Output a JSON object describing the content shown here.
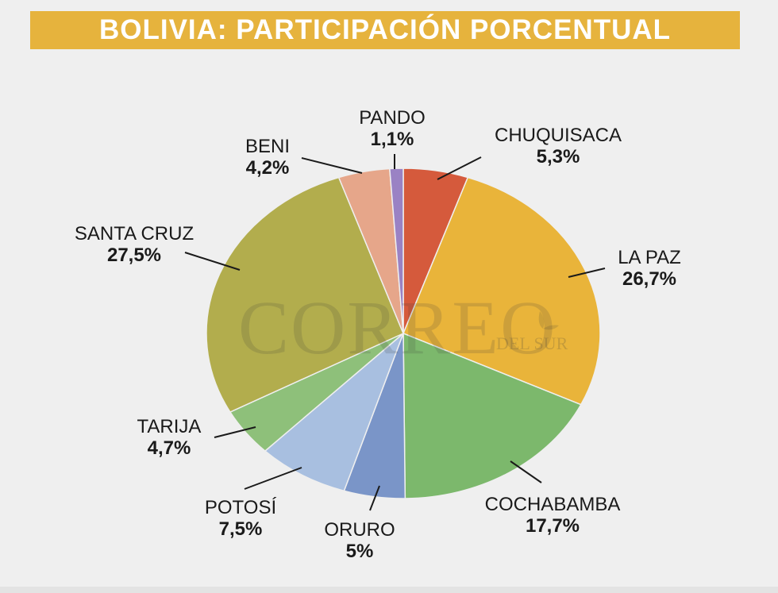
{
  "header": {
    "title": "BOLIVIA: PARTICIPACIÓN PORCENTUAL"
  },
  "watermark": {
    "main": "CORREO",
    "sub": "DEL SUR"
  },
  "chart_data": {
    "type": "pie",
    "title": "BOLIVIA: PARTICIPACIÓN PORCENTUAL",
    "start": "12 o'clock",
    "direction": "clockwise",
    "slices": [
      {
        "name": "CHUQUISACA",
        "value": 5.3,
        "label": "5,3%",
        "color": "#d55a3c"
      },
      {
        "name": "LA PAZ",
        "value": 26.7,
        "label": "26,7%",
        "color": "#e9b43a"
      },
      {
        "name": "COCHABAMBA",
        "value": 17.7,
        "label": "17,7%",
        "color": "#7cb86c"
      },
      {
        "name": "ORURO",
        "value": 5,
        "label": "5%",
        "color": "#7a95c8"
      },
      {
        "name": "POTOSÍ",
        "value": 7.5,
        "label": "7,5%",
        "color": "#a8bfe0"
      },
      {
        "name": "TARIJA",
        "value": 4.7,
        "label": "4,7%",
        "color": "#8ec07a"
      },
      {
        "name": "SANTA CRUZ",
        "value": 27.5,
        "label": "27,5%",
        "color": "#b2ad4d"
      },
      {
        "name": "BENI",
        "value": 4.2,
        "label": "4,2%",
        "color": "#e6a68a"
      },
      {
        "name": "PANDO",
        "value": 1.1,
        "label": "1,1%",
        "color": "#9a82c4"
      }
    ]
  }
}
